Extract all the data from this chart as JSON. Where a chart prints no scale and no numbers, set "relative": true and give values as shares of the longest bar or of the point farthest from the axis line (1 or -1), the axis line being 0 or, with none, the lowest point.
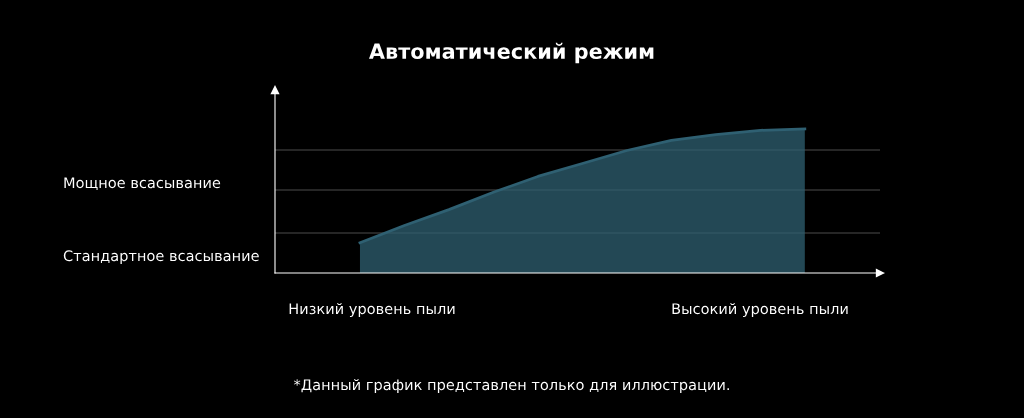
{
  "chart_data": {
    "type": "area",
    "title": "Автоматический режим",
    "relative": true,
    "categories": [
      null,
      null,
      null,
      null,
      null,
      null,
      null,
      null,
      null,
      null,
      null,
      null,
      null
    ],
    "series": [
      {
        "color": "#2f6072",
        "values": [
          null,
          null,
          0.21,
          0.33,
          0.44,
          0.56,
          0.67,
          0.76,
          0.85,
          0.92,
          0.96,
          0.99,
          1.0
        ]
      }
    ],
    "ref_lines": [
      {
        "axis": "y",
        "value": 0.278,
        "color": "#333333"
      },
      {
        "axis": "y",
        "value": 0.576,
        "color": "#333333"
      },
      {
        "axis": "y",
        "value": 0.854,
        "color": "#333333"
      }
    ],
    "annotations": [
      "Мощное всасывание",
      "Стандартное всасывание",
      "Низкий уровень пыли",
      "Высокий уровень пыли",
      "*Данный график представлен только для иллюстрации."
    ],
    "legend": false
  }
}
